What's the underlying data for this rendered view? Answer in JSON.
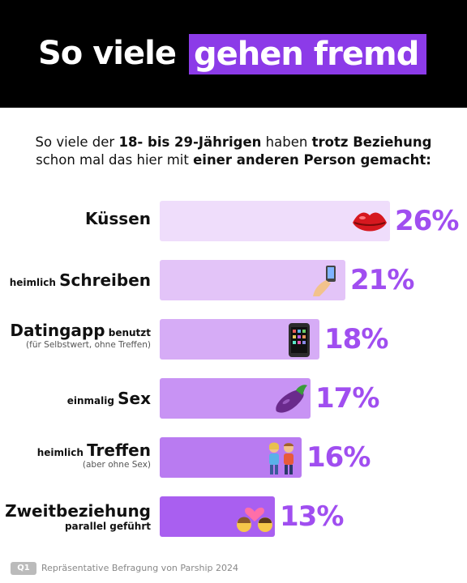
{
  "header": {
    "title_part1": "So viele",
    "title_part2": "gehen fremd"
  },
  "subtitle": {
    "line1_a": "So viele der ",
    "line1_b": "18- bis 29-Jährigen",
    "line1_c": " haben ",
    "line1_d": "trotz Beziehung",
    "line2_a": "schon mal das hier mit ",
    "line2_b": "einer anderen Person gemacht:"
  },
  "chart_data": {
    "type": "bar",
    "orientation": "horizontal",
    "categories": [
      "Küssen",
      "heimlich Schreiben",
      "Datingapp benutzt",
      "einmalig Sex",
      "heimlich Treffen",
      "Zweitbeziehung parallel geführt"
    ],
    "values": [
      26,
      21,
      18,
      17,
      16,
      13
    ],
    "value_labels": [
      "26%",
      "21%",
      "18%",
      "17%",
      "16%",
      "13%"
    ],
    "unit": "%",
    "colors": [
      "#efddfb",
      "#e3c4f8",
      "#d6acf6",
      "#c893f4",
      "#b97bf1",
      "#a95ff0"
    ],
    "value_color": "#a04ef0"
  },
  "rows": [
    {
      "pre": "",
      "main": "Küssen",
      "post": "",
      "note": "",
      "icon": "lips-icon"
    },
    {
      "pre": "heimlich ",
      "main": "Schreiben",
      "post": "",
      "note": "",
      "icon": "phone-hand-icon"
    },
    {
      "pre": "",
      "main": "Datingapp",
      "post": " benutzt",
      "note": "(für Selbstwert, ohne Treffen)",
      "icon": "smartphone-icon"
    },
    {
      "pre": "einmalig ",
      "main": "Sex",
      "post": "",
      "note": "",
      "icon": "eggplant-icon"
    },
    {
      "pre": "heimlich ",
      "main": "Treffen",
      "post": "",
      "note": "(aber ohne Sex)",
      "icon": "couple-icon"
    },
    {
      "pre": "",
      "main": "Zweitbeziehung",
      "post": "",
      "note": "parallel geführt",
      "icon": "kiss-icon"
    }
  ],
  "footer": {
    "badge": "Q1",
    "source": "Repräsentative Befragung von Parship 2024"
  }
}
